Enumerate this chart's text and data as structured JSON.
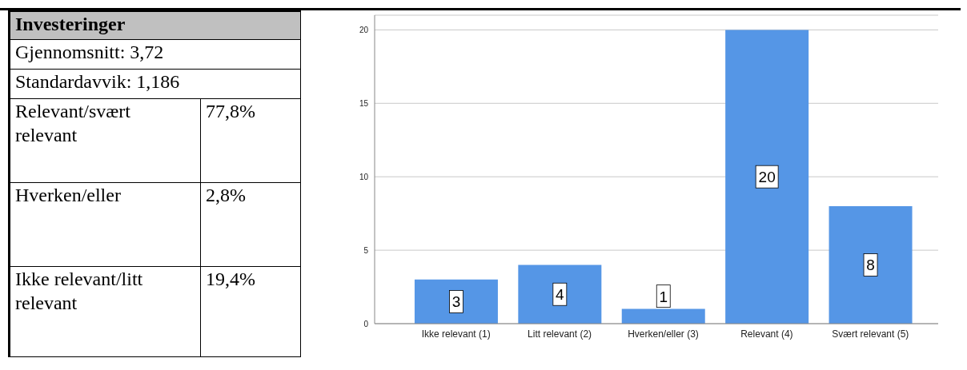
{
  "chart_data": [
    {
      "type": "other",
      "title": "Investeringer",
      "annotations": [
        "Gjennomsnitt: 3,72",
        "Standardavvik: 1,186",
        "Relevant/svært relevant",
        "77,8%",
        "Hverken/eller",
        "2,8%",
        "Ikke relevant/litt relevant",
        "19,4%"
      ]
    },
    {
      "type": "bar",
      "categories": [
        "Ikke relevant (1)",
        "Litt relevant (2)",
        "Hverken/eller (3)",
        "Relevant (4)",
        "Svært relevant (5)"
      ],
      "values": [
        3,
        4,
        1,
        20,
        8
      ],
      "color": "#5596e6",
      "ylim": [
        0,
        21
      ],
      "yticks": [
        0,
        5,
        10,
        15,
        20
      ],
      "grid": "y",
      "data_labels": true
    }
  ]
}
